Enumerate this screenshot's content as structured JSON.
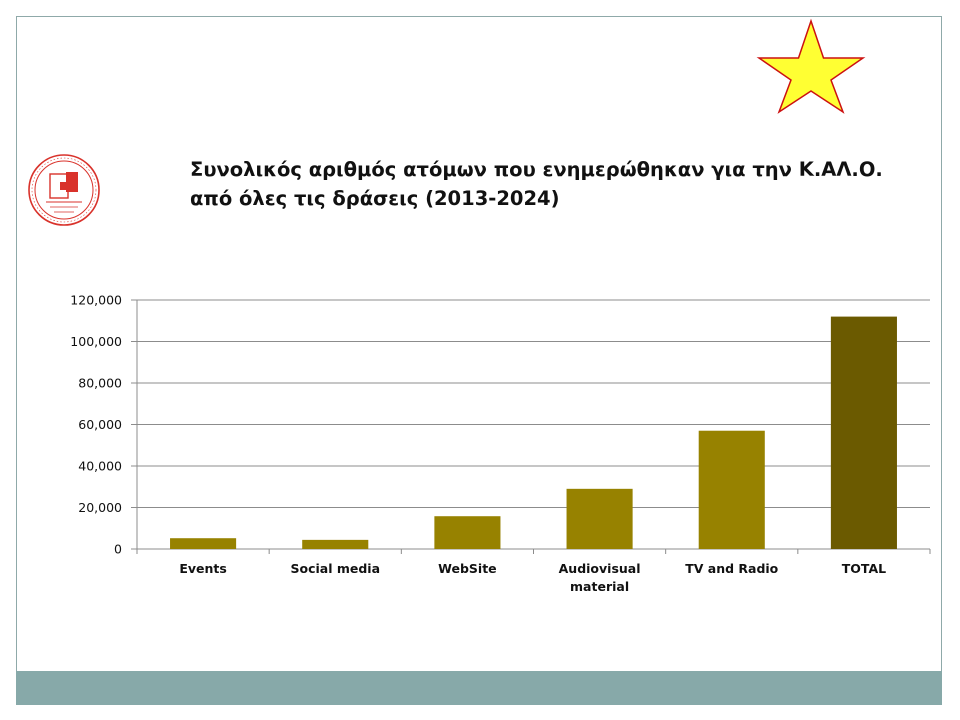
{
  "slide": {
    "title_line1": "Συνολικός αριθμός ατόμων που ενημερώθηκαν για την Κ.ΑΛ.Ο.",
    "title_line2": "από όλες τις δράσεις (2013-2024)",
    "colors": {
      "border": "#8fa9a9",
      "footer_band": "#87a9a9",
      "star_fill": "#ffff33",
      "star_stroke": "#cc1111",
      "logo": "#d9322b"
    },
    "decorations": [
      "star-icon",
      "logo-seal"
    ]
  },
  "chart_data": {
    "type": "bar",
    "categories": [
      "Events",
      "Social media",
      "WebSite",
      "Audiovisual material",
      "TV and Radio",
      "TOTAL"
    ],
    "category_label_lines": [
      [
        "Events"
      ],
      [
        "Social media"
      ],
      [
        "WebSite"
      ],
      [
        "Audiovisual",
        "material"
      ],
      [
        "TV and Radio"
      ],
      [
        "TOTAL"
      ]
    ],
    "values": [
      5200,
      4400,
      15800,
      29000,
      57000,
      112000
    ],
    "bar_colors": [
      "#978200",
      "#978200",
      "#978200",
      "#978200",
      "#978200",
      "#6b5a00"
    ],
    "ylim": [
      0,
      120000
    ],
    "yticks": [
      0,
      20000,
      40000,
      60000,
      80000,
      100000,
      120000
    ],
    "ytick_labels": [
      "0",
      "20,000",
      "40,000",
      "60,000",
      "80,000",
      "100,000",
      "120,000"
    ],
    "grid": true,
    "xlabel": "",
    "ylabel": ""
  }
}
